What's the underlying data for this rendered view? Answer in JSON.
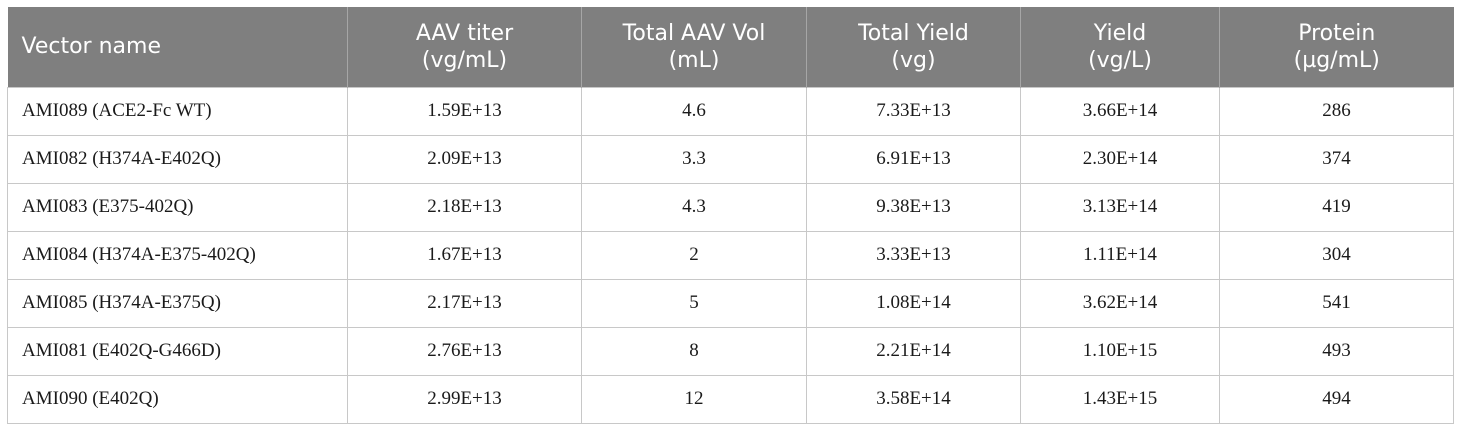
{
  "table": {
    "headers": [
      {
        "line1": "Vector name",
        "line2": ""
      },
      {
        "line1": "AAV titer",
        "line2": "(vg/mL)"
      },
      {
        "line1": "Total AAV Vol",
        "line2": "(mL)"
      },
      {
        "line1": "Total Yield",
        "line2": "(vg)"
      },
      {
        "line1": "Yield",
        "line2": "(vg/L)"
      },
      {
        "line1": "Protein",
        "line2": "(µg/mL)"
      }
    ],
    "rows": [
      [
        "AMI089 (ACE2-Fc WT)",
        "1.59E+13",
        "4.6",
        "7.33E+13",
        "3.66E+14",
        "286"
      ],
      [
        "AMI082 (H374A-E402Q)",
        "2.09E+13",
        "3.3",
        "6.91E+13",
        "2.30E+14",
        "374"
      ],
      [
        "AMI083 (E375-402Q)",
        "2.18E+13",
        "4.3",
        "9.38E+13",
        "3.13E+14",
        "419"
      ],
      [
        "AMI084 (H374A-E375-402Q)",
        "1.67E+13",
        "2",
        "3.33E+13",
        "1.11E+14",
        "304"
      ],
      [
        "AMI085 (H374A-E375Q)",
        "2.17E+13",
        "5",
        "1.08E+14",
        "3.62E+14",
        "541"
      ],
      [
        "AMI081 (E402Q-G466D)",
        "2.76E+13",
        "8",
        "2.21E+14",
        "1.10E+15",
        "493"
      ],
      [
        "AMI090 (E402Q)",
        "2.99E+13",
        "12",
        "3.58E+14",
        "1.43E+15",
        "494"
      ]
    ]
  }
}
